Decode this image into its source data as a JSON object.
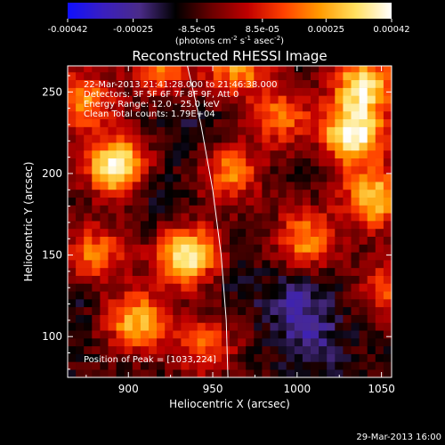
{
  "colorbar": {
    "tick_labels": [
      "-0.00042",
      "-0.00025",
      "-8.5e-05",
      "8.5e-05",
      "0.00025",
      "0.00042"
    ],
    "tick_values": [
      -0.00042,
      -0.00025,
      -8.5e-05,
      8.5e-05,
      0.00025,
      0.00042
    ],
    "range": [
      -0.00042,
      0.00042
    ],
    "unit_base": "(photons cm",
    "unit_sup1": "-2",
    "unit_mid": " s",
    "unit_sup2": "-1",
    "unit_end": " asec",
    "unit_sup3": "-2",
    "unit_close": ")",
    "colors": [
      "#1010ff",
      "#3a1fbf",
      "#4a2b88",
      "#000000",
      "#6a0000",
      "#c00000",
      "#ff4000",
      "#ff9a00",
      "#ffe060",
      "#ffffff"
    ]
  },
  "chart_data": {
    "type": "heatmap",
    "title": "Reconstructed RHESSI Image",
    "xlabel": "Heliocentric X (arcsec)",
    "ylabel": "Heliocentric Y (arcsec)",
    "xlim": [
      864,
      1056
    ],
    "ylim": [
      75,
      266
    ],
    "x_ticks": [
      900,
      950,
      1000,
      1050
    ],
    "y_ticks": [
      100,
      150,
      200,
      250
    ],
    "annotations": [
      "22-Mar-2013 21:41:28.000 to 21:46:38.000",
      "Detectors: 3F 5F 6F 7F 8F 9F, Att 0",
      "Energy Range: 12.0 - 25.0 keV",
      "Clean    Total counts: 1.79E+04"
    ],
    "peak_label": "Position of Peak = [1033,224]",
    "peak": [
      1033,
      224
    ],
    "hot_spots": [
      {
        "x": 893,
        "y": 205,
        "v": 0.0004
      },
      {
        "x": 873,
        "y": 245,
        "v": 0.00022
      },
      {
        "x": 935,
        "y": 150,
        "v": 0.00038
      },
      {
        "x": 905,
        "y": 110,
        "v": 0.00028
      },
      {
        "x": 960,
        "y": 200,
        "v": 0.0002
      },
      {
        "x": 990,
        "y": 235,
        "v": 0.00018
      },
      {
        "x": 1033,
        "y": 224,
        "v": 0.00042
      },
      {
        "x": 1040,
        "y": 255,
        "v": 0.00035
      },
      {
        "x": 1045,
        "y": 185,
        "v": 0.0003
      },
      {
        "x": 1005,
        "y": 160,
        "v": 0.00022
      },
      {
        "x": 945,
        "y": 95,
        "v": 0.00016
      },
      {
        "x": 1055,
        "y": 130,
        "v": 0.00015
      },
      {
        "x": 880,
        "y": 150,
        "v": 0.0002
      },
      {
        "x": 965,
        "y": 265,
        "v": 0.00024
      },
      {
        "x": 920,
        "y": 265,
        "v": 0.00018
      }
    ],
    "cold_spots": [
      {
        "x": 920,
        "y": 185,
        "v": -0.00018
      },
      {
        "x": 1000,
        "y": 120,
        "v": -0.00025
      },
      {
        "x": 1010,
        "y": 95,
        "v": -0.00022
      },
      {
        "x": 935,
        "y": 225,
        "v": -0.00015
      },
      {
        "x": 1010,
        "y": 210,
        "v": -0.00012
      },
      {
        "x": 870,
        "y": 125,
        "v": -0.00016
      },
      {
        "x": 960,
        "y": 130,
        "v": -0.00014
      },
      {
        "x": 975,
        "y": 245,
        "v": -0.00012
      }
    ],
    "limb_curve": [
      [
        935,
        266
      ],
      [
        943,
        230
      ],
      [
        950,
        190
      ],
      [
        955,
        150
      ],
      [
        958,
        110
      ],
      [
        959,
        75
      ]
    ]
  },
  "footer_timestamp": "29-Mar-2013 16:00"
}
